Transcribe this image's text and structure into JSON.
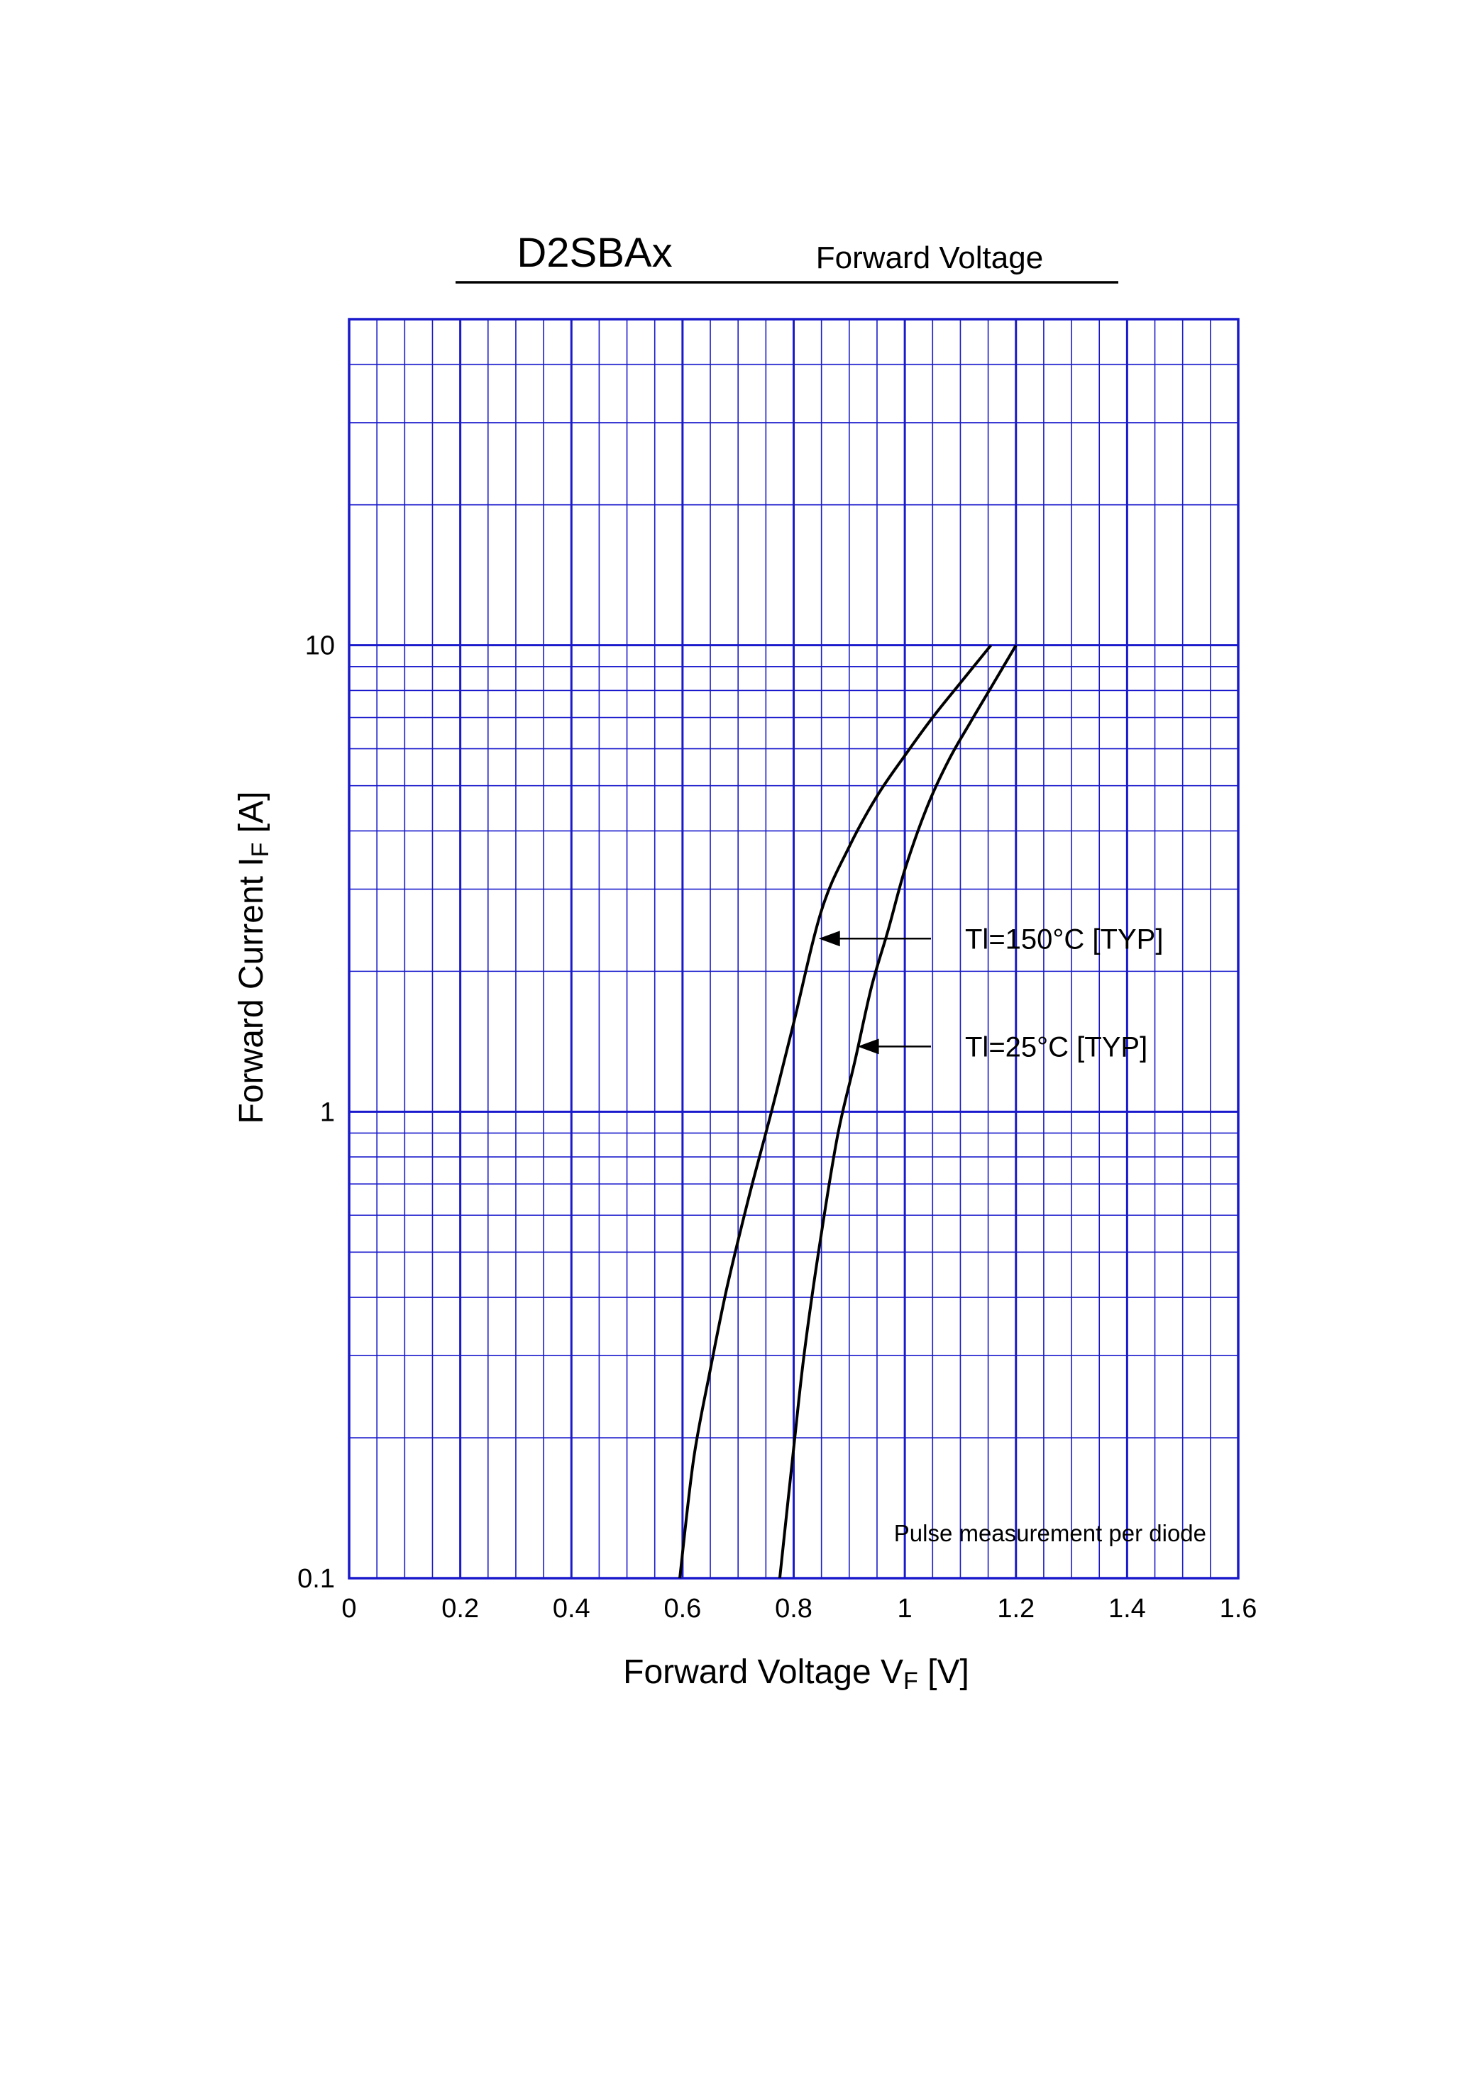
{
  "header": {
    "part_number": "D2SBAx",
    "subtitle": "Forward Voltage"
  },
  "chart_data": {
    "type": "line",
    "xlabel": {
      "main": "Forward Voltage  V",
      "sub": "F",
      "unit": "  [V]"
    },
    "ylabel": {
      "main": "Forward Current  I",
      "sub": "F",
      "unit": "  [A]"
    },
    "xlim": [
      0,
      1.6
    ],
    "ylim": [
      0.1,
      50
    ],
    "yscale": "log",
    "grid": true,
    "x_ticks": [
      {
        "v": 0,
        "label": "0"
      },
      {
        "v": 0.2,
        "label": "0.2"
      },
      {
        "v": 0.4,
        "label": "0.4"
      },
      {
        "v": 0.6,
        "label": "0.6"
      },
      {
        "v": 0.8,
        "label": "0.8"
      },
      {
        "v": 1.0,
        "label": "1"
      },
      {
        "v": 1.2,
        "label": "1.2"
      },
      {
        "v": 1.4,
        "label": "1.4"
      },
      {
        "v": 1.6,
        "label": "1.6"
      }
    ],
    "y_ticks": [
      {
        "v": 0.1,
        "label": "0.1"
      },
      {
        "v": 1,
        "label": "1"
      },
      {
        "v": 10,
        "label": "10"
      }
    ],
    "series": [
      {
        "name": "Tl=150°C [TYP]",
        "x": [
          0.595,
          0.62,
          0.65,
          0.68,
          0.72,
          0.76,
          0.8,
          0.85,
          0.9,
          0.95,
          1.0,
          1.05,
          1.1,
          1.155
        ],
        "y": [
          0.1,
          0.18,
          0.28,
          0.42,
          0.66,
          1.0,
          1.55,
          2.7,
          3.7,
          4.75,
          5.8,
          7.0,
          8.3,
          10.0
        ]
      },
      {
        "name": "Tl=25°C [TYP]",
        "x": [
          0.775,
          0.8,
          0.82,
          0.85,
          0.88,
          0.91,
          0.94,
          0.97,
          1.0,
          1.04,
          1.08,
          1.12,
          1.16,
          1.2
        ],
        "y": [
          0.1,
          0.19,
          0.31,
          0.55,
          0.9,
          1.28,
          1.85,
          2.45,
          3.3,
          4.5,
          5.7,
          6.9,
          8.3,
          10.0
        ]
      }
    ],
    "annotations": [
      {
        "text": "Tl=150°C [TYP]",
        "arrow_to": {
          "x": 0.845,
          "y": 2.35
        }
      },
      {
        "text": "Tl=25°C [TYP]",
        "arrow_to": {
          "x": 0.915,
          "y": 1.38
        }
      }
    ],
    "note": "Pulse  measurement  per  diode",
    "colors": {
      "grid": "#1a1acc",
      "curve": "#000000"
    }
  }
}
